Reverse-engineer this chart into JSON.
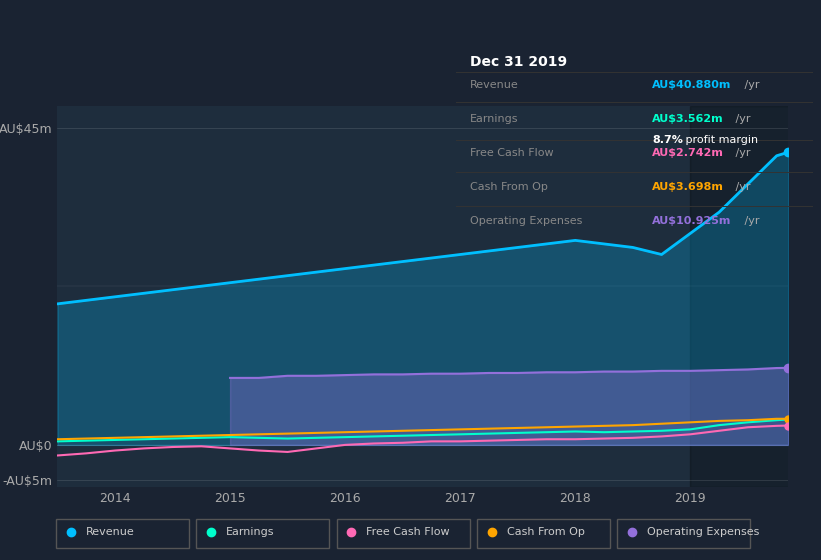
{
  "background_color": "#1a2332",
  "plot_bg_color": "#1e2d3d",
  "title": "Dec 31 2019",
  "ylabel_top": "AU$45m",
  "ylabel_zero": "AU$0",
  "ylabel_neg": "-AU$5m",
  "x_labels": [
    "2014",
    "2015",
    "2016",
    "2017",
    "2018",
    "2019"
  ],
  "x_range": [
    2013.5,
    2019.85
  ],
  "y_range": [
    -6,
    48
  ],
  "colors": {
    "revenue": "#00bfff",
    "earnings": "#00ffcc",
    "free_cash_flow": "#ff69b4",
    "cash_from_op": "#ffa500",
    "operating_expenses": "#9370db"
  },
  "legend_items": [
    "Revenue",
    "Earnings",
    "Free Cash Flow",
    "Cash From Op",
    "Operating Expenses"
  ],
  "tooltip": {
    "title": "Dec 31 2019",
    "rows": [
      {
        "label": "Revenue",
        "value": "AU$40.880m",
        "color": "#00bfff"
      },
      {
        "label": "Earnings",
        "value": "AU$3.562m",
        "color": "#00ffcc"
      },
      {
        "label": "margin",
        "value": "8.7% profit margin",
        "color": "#ffffff"
      },
      {
        "label": "Free Cash Flow",
        "value": "AU$2.742m",
        "color": "#ff69b4"
      },
      {
        "label": "Cash From Op",
        "value": "AU$3.698m",
        "color": "#ffa500"
      },
      {
        "label": "Operating Expenses",
        "value": "AU$10.925m",
        "color": "#9370db"
      }
    ]
  },
  "series": {
    "years": [
      2013.5,
      2013.75,
      2014.0,
      2014.25,
      2014.5,
      2014.75,
      2015.0,
      2015.25,
      2015.5,
      2015.75,
      2016.0,
      2016.25,
      2016.5,
      2016.75,
      2017.0,
      2017.25,
      2017.5,
      2017.75,
      2018.0,
      2018.25,
      2018.5,
      2018.75,
      2019.0,
      2019.25,
      2019.5,
      2019.75,
      2019.85
    ],
    "revenue": [
      20,
      20.5,
      21,
      21.5,
      22,
      22.5,
      23,
      23.5,
      24,
      24.5,
      25,
      25.5,
      26,
      26.5,
      27,
      27.5,
      28,
      28.5,
      29,
      28.5,
      28,
      27,
      30,
      33,
      37,
      41,
      41.5
    ],
    "earnings": [
      0.5,
      0.6,
      0.7,
      0.8,
      0.9,
      1.0,
      1.1,
      1.0,
      0.9,
      1.0,
      1.1,
      1.2,
      1.3,
      1.4,
      1.5,
      1.6,
      1.7,
      1.8,
      1.9,
      1.8,
      1.9,
      2.0,
      2.2,
      2.8,
      3.2,
      3.5,
      3.6
    ],
    "free_cash_flow": [
      -1.5,
      -1.2,
      -0.8,
      -0.5,
      -0.3,
      -0.2,
      -0.5,
      -0.8,
      -1.0,
      -0.5,
      0.0,
      0.2,
      0.3,
      0.5,
      0.5,
      0.6,
      0.7,
      0.8,
      0.8,
      0.9,
      1.0,
      1.2,
      1.5,
      2.0,
      2.5,
      2.7,
      2.74
    ],
    "cash_from_op": [
      0.8,
      0.9,
      1.0,
      1.1,
      1.2,
      1.3,
      1.4,
      1.5,
      1.6,
      1.7,
      1.8,
      1.9,
      2.0,
      2.1,
      2.2,
      2.3,
      2.4,
      2.5,
      2.6,
      2.7,
      2.8,
      3.0,
      3.2,
      3.4,
      3.5,
      3.7,
      3.7
    ],
    "operating_expenses": [
      0,
      0,
      0,
      0,
      0,
      0,
      9.5,
      9.5,
      9.8,
      9.8,
      9.9,
      10.0,
      10.0,
      10.1,
      10.1,
      10.2,
      10.2,
      10.3,
      10.3,
      10.4,
      10.4,
      10.5,
      10.5,
      10.6,
      10.7,
      10.9,
      10.925
    ]
  },
  "shaded_region_start": 2019.0
}
